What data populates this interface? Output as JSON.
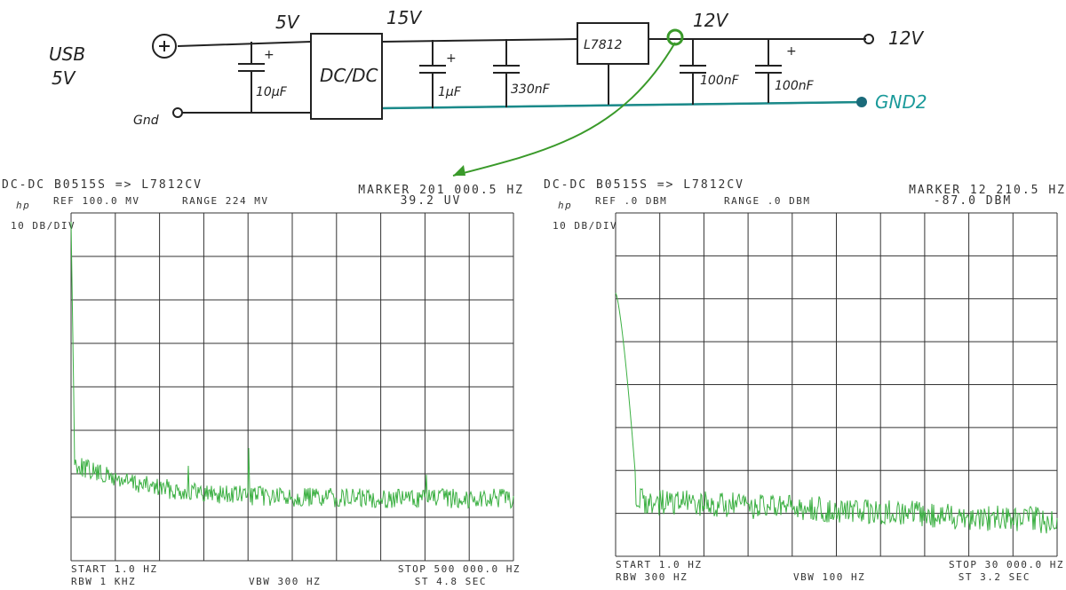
{
  "schematic": {
    "usb": "USB",
    "usb_volt": "5V",
    "gnd": "Gnd",
    "rail_5v": "5V",
    "rail_15v": "15V",
    "dcdc": "DC/DC",
    "regulator": "L7812",
    "rail_12v": "12V",
    "out_12v": "12V",
    "out_gnd": "GND2",
    "c1": "10µF",
    "c2": "1µF",
    "c3": "330nF",
    "c4": "100nF",
    "c5": "100nF",
    "plus": "+"
  },
  "plots": [
    {
      "title": "DC-DC B0515S => L7812CV",
      "brand": "hp",
      "ref": "REF 100.0 MV",
      "range": "RANGE 224 MV",
      "marker": "MARKER 201 000.5 HZ",
      "marker_value": "39.2 UV",
      "scale": "10 DB/DIV",
      "start": "START 1.0 HZ",
      "rbw": "RBW 1 KHZ",
      "vbw": "VBW 300 HZ",
      "stop": "STOP 500 000.0 HZ",
      "sweep": "ST 4.8 SEC"
    },
    {
      "title": "DC-DC B0515S => L7812CV",
      "brand": "hp",
      "ref": "REF .0 DBM",
      "range": "RANGE .0 DBM",
      "marker": "MARKER 12 210.5 HZ",
      "marker_value": "-87.0 DBM",
      "scale": "10 DB/DIV",
      "start": "START 1.0 HZ",
      "rbw": "RBW 300 HZ",
      "vbw": "VBW 100 HZ",
      "stop": "STOP 30 000.0 HZ",
      "sweep": "ST 3.2 SEC"
    }
  ]
}
